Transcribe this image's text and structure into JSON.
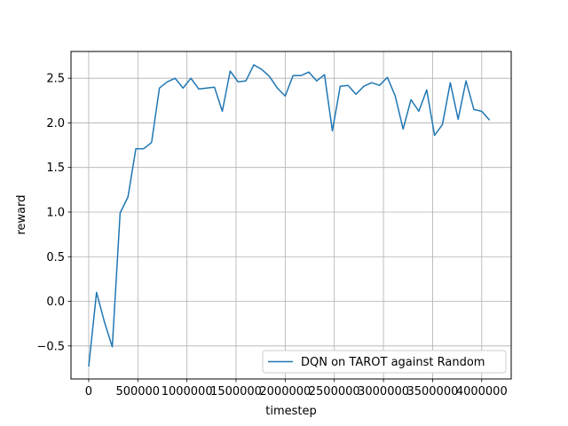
{
  "chart_data": {
    "type": "line",
    "title": "",
    "xlabel": "timestep",
    "ylabel": "reward",
    "xlim": [
      -180000,
      4300000
    ],
    "ylim": [
      -0.87,
      2.8
    ],
    "xticks": [
      0,
      500000,
      1000000,
      1500000,
      2000000,
      2500000,
      3000000,
      3500000,
      4000000
    ],
    "yticks": [
      -0.5,
      0.0,
      0.5,
      1.0,
      1.5,
      2.0,
      2.5
    ],
    "xtick_labels": [
      "0",
      "500000",
      "1000000",
      "1500000",
      "2000000",
      "2500000",
      "3000000",
      "3500000",
      "4000000"
    ],
    "ytick_labels": [
      "−0.5",
      "0.0",
      "0.5",
      "1.0",
      "1.5",
      "2.0",
      "2.5"
    ],
    "grid": true,
    "legend_position": "lower-right",
    "series": [
      {
        "name": "DQN on TAROT against Random",
        "color": "#1f77b4",
        "x": [
          0,
          80000,
          160000,
          240000,
          320000,
          400000,
          480000,
          560000,
          640000,
          720000,
          800000,
          880000,
          960000,
          1040000,
          1120000,
          1200000,
          1280000,
          1360000,
          1440000,
          1520000,
          1600000,
          1680000,
          1760000,
          1840000,
          1920000,
          2000000,
          2080000,
          2160000,
          2240000,
          2320000,
          2400000,
          2480000,
          2560000,
          2640000,
          2720000,
          2800000,
          2880000,
          2960000,
          3040000,
          3120000,
          3200000,
          3280000,
          3360000,
          3440000,
          3520000,
          3600000,
          3680000,
          3760000,
          3840000,
          3920000,
          4000000,
          4080000
        ],
        "y": [
          -0.73,
          0.1,
          -0.23,
          -0.51,
          0.99,
          1.17,
          1.71,
          1.71,
          1.78,
          2.39,
          2.46,
          2.5,
          2.39,
          2.5,
          2.38,
          2.39,
          2.4,
          2.13,
          2.58,
          2.46,
          2.47,
          2.65,
          2.6,
          2.52,
          2.39,
          2.3,
          2.53,
          2.53,
          2.57,
          2.47,
          2.54,
          1.91,
          2.41,
          2.42,
          2.32,
          2.41,
          2.45,
          2.42,
          2.51,
          2.3,
          1.93,
          2.26,
          2.13,
          2.37,
          1.86,
          1.98,
          2.45,
          2.04,
          2.47,
          2.15,
          2.13,
          2.03
        ]
      }
    ]
  }
}
